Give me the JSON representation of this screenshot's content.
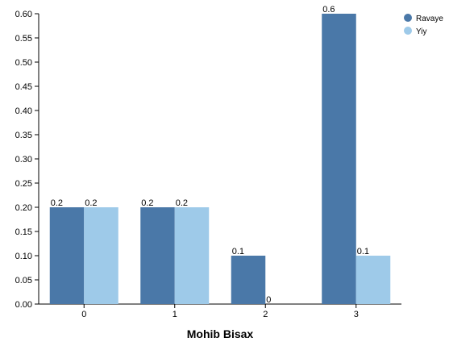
{
  "chart_data": {
    "type": "bar",
    "categories": [
      "0",
      "1",
      "2",
      "3"
    ],
    "series": [
      {
        "name": "Ravaye",
        "values": [
          0.2,
          0.2,
          0.1,
          0.6
        ],
        "labels": [
          "0.2",
          "0.2",
          "0.1",
          "0.6"
        ],
        "color": "#4a78a8"
      },
      {
        "name": "Yiy",
        "values": [
          0.2,
          0.2,
          0,
          0.1
        ],
        "labels": [
          "0.2",
          "0.2",
          "0",
          "0.1"
        ],
        "color": "#9ecae9"
      }
    ],
    "xlabel": "Mohib Bisax",
    "ylabel": "",
    "ylim": [
      0,
      0.6
    ],
    "yticks": [
      "0.00",
      "0.05",
      "0.10",
      "0.15",
      "0.20",
      "0.25",
      "0.30",
      "0.35",
      "0.40",
      "0.45",
      "0.50",
      "0.55",
      "0.60"
    ],
    "grid": false,
    "legend_position": "top-right"
  }
}
